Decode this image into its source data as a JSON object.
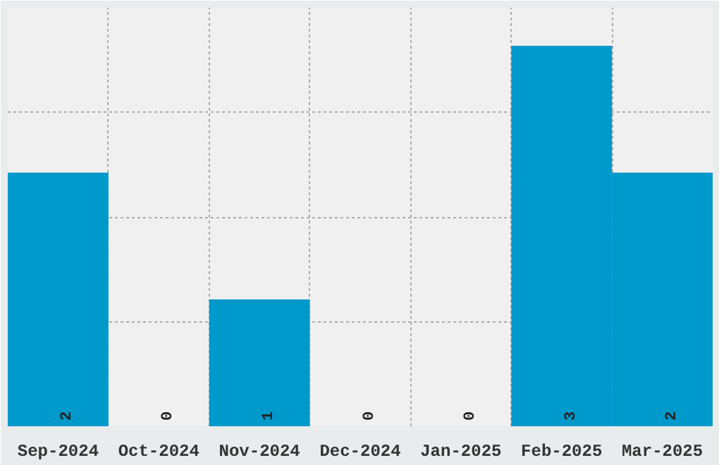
{
  "chart_data": {
    "type": "bar",
    "categories": [
      "Sep-2024",
      "Oct-2024",
      "Nov-2024",
      "Dec-2024",
      "Jan-2025",
      "Feb-2025",
      "Mar-2025"
    ],
    "values": [
      2,
      0,
      1,
      0,
      0,
      3,
      2
    ],
    "color": "#0099cc",
    "ylim": [
      0,
      3.3
    ],
    "yticks": [
      {
        "value": 0.825,
        "label": null
      },
      {
        "value": 1.65,
        "label": null
      },
      {
        "value": 2.475,
        "label": null
      }
    ],
    "grid": true,
    "data_labels": true,
    "tick_labels": "x"
  }
}
